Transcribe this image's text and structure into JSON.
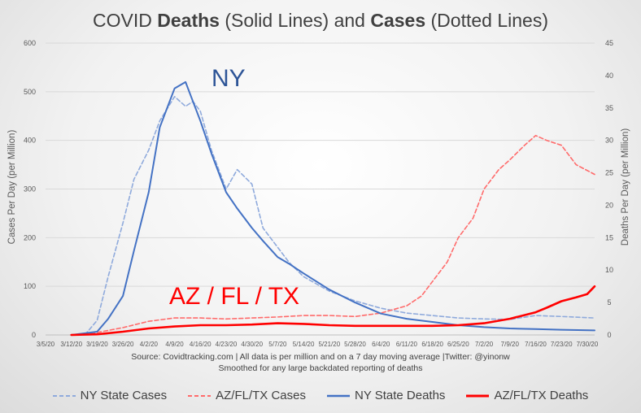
{
  "title": {
    "pre": "COVID ",
    "b1": "Deaths",
    "mid": " (Solid Lines) and ",
    "b2": "Cases",
    "post": " (Dotted Lines)"
  },
  "colors": {
    "ny": "#4472c4",
    "ny_cases": "#8faadc",
    "az": "#ff0000",
    "az_cases": "#ff6b6b",
    "text": "#404040",
    "grid": "#d9d9d9"
  },
  "source_line1": "Source: Covidtracking.com | All data is per million and on a 7 day moving average |Twitter: @yinonw",
  "source_line2": "Smoothed for any large backdated reporting of deaths",
  "annotations": {
    "ny": "NY",
    "az": "AZ / FL / TX"
  },
  "chart_data": {
    "type": "line",
    "title": "COVID Deaths (Solid Lines) and Cases (Dotted Lines)",
    "ylabel_left": "Cases Per Day (per Million)",
    "ylabel_right": "Deaths Per Day (per Million)",
    "ylim_left": [
      0,
      600
    ],
    "ylim_right": [
      0,
      45
    ],
    "yticks_left": [
      0,
      100,
      200,
      300,
      400,
      500,
      600
    ],
    "yticks_right": [
      0,
      5,
      10,
      15,
      20,
      25,
      30,
      35,
      40,
      45
    ],
    "grid": true,
    "legend_position": "bottom",
    "x_ticks": [
      "3/5/20",
      "3/12/20",
      "3/19/20",
      "3/26/20",
      "4/2/20",
      "4/9/20",
      "4/16/20",
      "4/23/20",
      "4/30/20",
      "5/7/20",
      "5/14/20",
      "5/21/20",
      "5/28/20",
      "6/4/20",
      "6/11/20",
      "6/18/20",
      "6/25/20",
      "7/2/20",
      "7/9/20",
      "7/16/20",
      "7/23/20",
      "7/30/20"
    ],
    "series": [
      {
        "name": "NY State Cases",
        "axis": "left",
        "style": "dashed",
        "color": "#8faadc",
        "x": [
          "3/12/20",
          "3/16/20",
          "3/19/20",
          "3/22/20",
          "3/26/20",
          "3/29/20",
          "4/2/20",
          "4/5/20",
          "4/9/20",
          "4/12/20",
          "4/14/20",
          "4/16/20",
          "4/19/20",
          "4/23/20",
          "4/26/20",
          "4/30/20",
          "5/3/20",
          "5/7/20",
          "5/10/20",
          "5/14/20",
          "5/21/20",
          "5/28/20",
          "6/4/20",
          "6/11/20",
          "6/18/20",
          "6/25/20",
          "7/2/20",
          "7/9/20",
          "7/16/20",
          "7/23/20",
          "8/1/20"
        ],
        "values": [
          0,
          3,
          30,
          120,
          230,
          320,
          380,
          440,
          490,
          470,
          480,
          460,
          380,
          300,
          340,
          310,
          220,
          180,
          150,
          120,
          90,
          70,
          55,
          45,
          40,
          35,
          33,
          32,
          40,
          38,
          35
        ]
      },
      {
        "name": "AZ/FL/TX Cases",
        "axis": "left",
        "style": "dashed",
        "color": "#ff6b6b",
        "x": [
          "3/12/20",
          "3/19/20",
          "3/26/20",
          "4/2/20",
          "4/9/20",
          "4/16/20",
          "4/23/20",
          "4/30/20",
          "5/7/20",
          "5/14/20",
          "5/21/20",
          "5/28/20",
          "6/4/20",
          "6/11/20",
          "6/15/20",
          "6/18/20",
          "6/22/20",
          "6/25/20",
          "6/29/20",
          "7/2/20",
          "7/6/20",
          "7/9/20",
          "7/13/20",
          "7/16/20",
          "7/19/20",
          "7/23/20",
          "7/27/20",
          "8/1/20"
        ],
        "values": [
          0,
          5,
          15,
          28,
          35,
          35,
          33,
          35,
          37,
          40,
          40,
          38,
          45,
          60,
          80,
          110,
          150,
          200,
          240,
          300,
          340,
          360,
          390,
          410,
          400,
          390,
          350,
          330
        ]
      },
      {
        "name": "NY State Deaths",
        "axis": "right",
        "style": "solid",
        "color": "#4472c4",
        "x": [
          "3/12/20",
          "3/19/20",
          "3/22/20",
          "3/26/20",
          "3/29/20",
          "4/2/20",
          "4/5/20",
          "4/9/20",
          "4/12/20",
          "4/14/20",
          "4/16/20",
          "4/19/20",
          "4/23/20",
          "4/26/20",
          "4/30/20",
          "5/3/20",
          "5/7/20",
          "5/10/20",
          "5/14/20",
          "5/21/20",
          "5/28/20",
          "6/4/20",
          "6/11/20",
          "6/18/20",
          "6/25/20",
          "7/2/20",
          "7/9/20",
          "7/16/20",
          "7/23/20",
          "8/1/20"
        ],
        "values": [
          0,
          0.5,
          2.5,
          6,
          13,
          22,
          32,
          38,
          39,
          36,
          33,
          28,
          22,
          19.5,
          16.5,
          14.5,
          12,
          11,
          9.5,
          7,
          5,
          3.3,
          2.5,
          2,
          1.5,
          1.2,
          1,
          0.9,
          0.8,
          0.7
        ]
      },
      {
        "name": "AZ/FL/TX Deaths",
        "axis": "right",
        "style": "solid",
        "color": "#ff0000",
        "x": [
          "3/12/20",
          "3/19/20",
          "3/26/20",
          "4/2/20",
          "4/9/20",
          "4/16/20",
          "4/23/20",
          "4/30/20",
          "5/7/20",
          "5/14/20",
          "5/21/20",
          "5/28/20",
          "6/4/20",
          "6/11/20",
          "6/18/20",
          "6/25/20",
          "7/2/20",
          "7/9/20",
          "7/16/20",
          "7/19/20",
          "7/23/20",
          "7/27/20",
          "7/30/20",
          "8/1/20"
        ],
        "values": [
          0,
          0.1,
          0.5,
          1,
          1.3,
          1.5,
          1.5,
          1.6,
          1.8,
          1.7,
          1.5,
          1.4,
          1.4,
          1.4,
          1.4,
          1.5,
          1.8,
          2.5,
          3.5,
          4.2,
          5.2,
          5.8,
          6.3,
          7.5
        ]
      }
    ]
  }
}
